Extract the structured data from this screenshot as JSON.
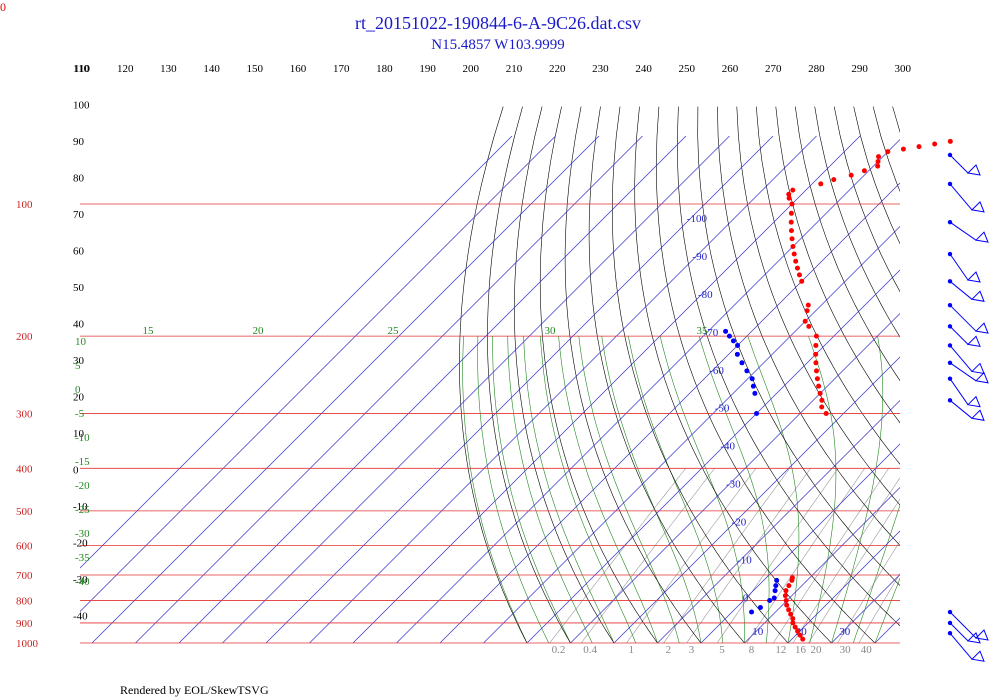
{
  "header": {
    "title": "rt_20151022-190844-6-A-9C26.dat.csv",
    "subtitle": "N15.4857 W103.9999",
    "corner_label": "0"
  },
  "footer": {
    "credit": "Rendered by EOL/SkewTSVG"
  },
  "colors": {
    "isobar": "#e33333",
    "isotherm": "#3333cc",
    "dry_adiabat": "#000000",
    "moist_adiabat": "#228822",
    "mixing_ratio": "#999999",
    "temperature": "#ff0000",
    "dewpoint": "#0000ff"
  },
  "chart_data": {
    "type": "scatter",
    "title": "rt_20151022-190844-6-A-9C26.dat.csv",
    "subtitle": "N15.4857 W103.9999",
    "xlabel": "",
    "ylabel": "",
    "y_axis_scale": "log pressure (skew-T)",
    "pressure_range_hpa": [
      1000,
      70
    ],
    "grid": true,
    "isobar_labels_hpa": [
      "100",
      "200",
      "300",
      "400",
      "500",
      "600",
      "700",
      "800",
      "900",
      "1000"
    ],
    "isotherm_labels_c": [
      "-100",
      "-90",
      "-80",
      "-70",
      "-60",
      "-50",
      "-40",
      "-30",
      "-20",
      "-10",
      "0",
      "10",
      "20",
      "30"
    ],
    "dry_adiabat_top_labels_c": [
      "110",
      "120",
      "130",
      "140",
      "150",
      "160",
      "170",
      "180",
      "190",
      "200",
      "210",
      "220",
      "230",
      "240",
      "250",
      "260",
      "270",
      "280",
      "290",
      "300"
    ],
    "dry_adiabat_left_labels_c": [
      "110",
      "100",
      "90",
      "80",
      "70",
      "60",
      "50",
      "40",
      "30",
      "20",
      "10",
      "0",
      "-10",
      "-20",
      "-30",
      "-40"
    ],
    "moist_adiabat_labels_c": [
      "15",
      "20",
      "25",
      "30",
      "35",
      "10",
      "5",
      "0",
      "-5",
      "-10",
      "-15",
      "-20",
      "-25",
      "-30",
      "-35",
      "-40"
    ],
    "mixing_ratio_labels_gkg": [
      "0.2",
      "0.4",
      "1",
      "2",
      "3",
      "5",
      "8",
      "12",
      "16",
      "20",
      "30",
      "40"
    ],
    "series": [
      {
        "name": "temperature",
        "points": [
          {
            "p": 980,
            "t": 22.5
          },
          {
            "p": 960,
            "t": 21.0
          },
          {
            "p": 940,
            "t": 19.5
          },
          {
            "p": 920,
            "t": 18.0
          },
          {
            "p": 900,
            "t": 16.5
          },
          {
            "p": 880,
            "t": 15.5
          },
          {
            "p": 860,
            "t": 14.0
          },
          {
            "p": 840,
            "t": 12.5
          },
          {
            "p": 820,
            "t": 11.0
          },
          {
            "p": 800,
            "t": 9.8
          },
          {
            "p": 780,
            "t": 8.5
          },
          {
            "p": 760,
            "t": 7.5
          },
          {
            "p": 740,
            "t": 7.0
          },
          {
            "p": 720,
            "t": 6.5
          },
          {
            "p": 710,
            "t": 6.0
          },
          {
            "p": 300,
            "t": -24.0
          },
          {
            "p": 290,
            "t": -26.5
          },
          {
            "p": 280,
            "t": -28.0
          },
          {
            "p": 270,
            "t": -30.0
          },
          {
            "p": 260,
            "t": -32.0
          },
          {
            "p": 250,
            "t": -34.0
          },
          {
            "p": 240,
            "t": -36.0
          },
          {
            "p": 230,
            "t": -38.0
          },
          {
            "p": 220,
            "t": -40.0
          },
          {
            "p": 210,
            "t": -42.0
          },
          {
            "p": 200,
            "t": -44.0
          },
          {
            "p": 190,
            "t": -48.0
          },
          {
            "p": 185,
            "t": -50.0
          },
          {
            "p": 175,
            "t": -52.0
          },
          {
            "p": 170,
            "t": -53.0
          },
          {
            "p": 150,
            "t": -60.0
          },
          {
            "p": 145,
            "t": -62.0
          },
          {
            "p": 140,
            "t": -64.0
          },
          {
            "p": 135,
            "t": -66.0
          },
          {
            "p": 130,
            "t": -68.0
          },
          {
            "p": 125,
            "t": -70.0
          },
          {
            "p": 120,
            "t": -72.0
          },
          {
            "p": 115,
            "t": -74.0
          },
          {
            "p": 110,
            "t": -76.0
          },
          {
            "p": 105,
            "t": -78.0
          },
          {
            "p": 100,
            "t": -80.0
          },
          {
            "p": 97,
            "t": -82.0
          },
          {
            "p": 95,
            "t": -83.0
          },
          {
            "p": 93,
            "t": -83.0
          },
          {
            "p": 90,
            "t": -78.0
          },
          {
            "p": 88,
            "t": -76.0
          },
          {
            "p": 86,
            "t": -73.0
          },
          {
            "p": 84,
            "t": -71.0
          },
          {
            "p": 82,
            "t": -69.0
          },
          {
            "p": 80,
            "t": -70.0
          },
          {
            "p": 78,
            "t": -71.0
          },
          {
            "p": 76,
            "t": -70.0
          },
          {
            "p": 75,
            "t": -67.0
          },
          {
            "p": 74,
            "t": -64.0
          },
          {
            "p": 73,
            "t": -61.0
          },
          {
            "p": 72,
            "t": -58.0
          }
        ]
      },
      {
        "name": "dewpoint",
        "points": [
          {
            "p": 850,
            "t": 4.5
          },
          {
            "p": 830,
            "t": 5.5
          },
          {
            "p": 800,
            "t": 6.0
          },
          {
            "p": 790,
            "t": 6.5
          },
          {
            "p": 760,
            "t": 5.0
          },
          {
            "p": 740,
            "t": 4.0
          },
          {
            "p": 720,
            "t": 3.0
          },
          {
            "p": 300,
            "t": -40.0
          },
          {
            "p": 270,
            "t": -45.0
          },
          {
            "p": 260,
            "t": -47.0
          },
          {
            "p": 250,
            "t": -49.0
          },
          {
            "p": 240,
            "t": -52.0
          },
          {
            "p": 230,
            "t": -55.0
          },
          {
            "p": 220,
            "t": -58.0
          },
          {
            "p": 210,
            "t": -60.0
          },
          {
            "p": 205,
            "t": -62.0
          },
          {
            "p": 200,
            "t": -64.0
          },
          {
            "p": 195,
            "t": -66.0
          }
        ]
      }
    ],
    "wind_barb_levels_hpa": [
      70,
      90,
      110,
      130,
      150,
      170,
      190,
      210,
      230,
      250,
      280,
      850,
      900,
      950
    ]
  }
}
